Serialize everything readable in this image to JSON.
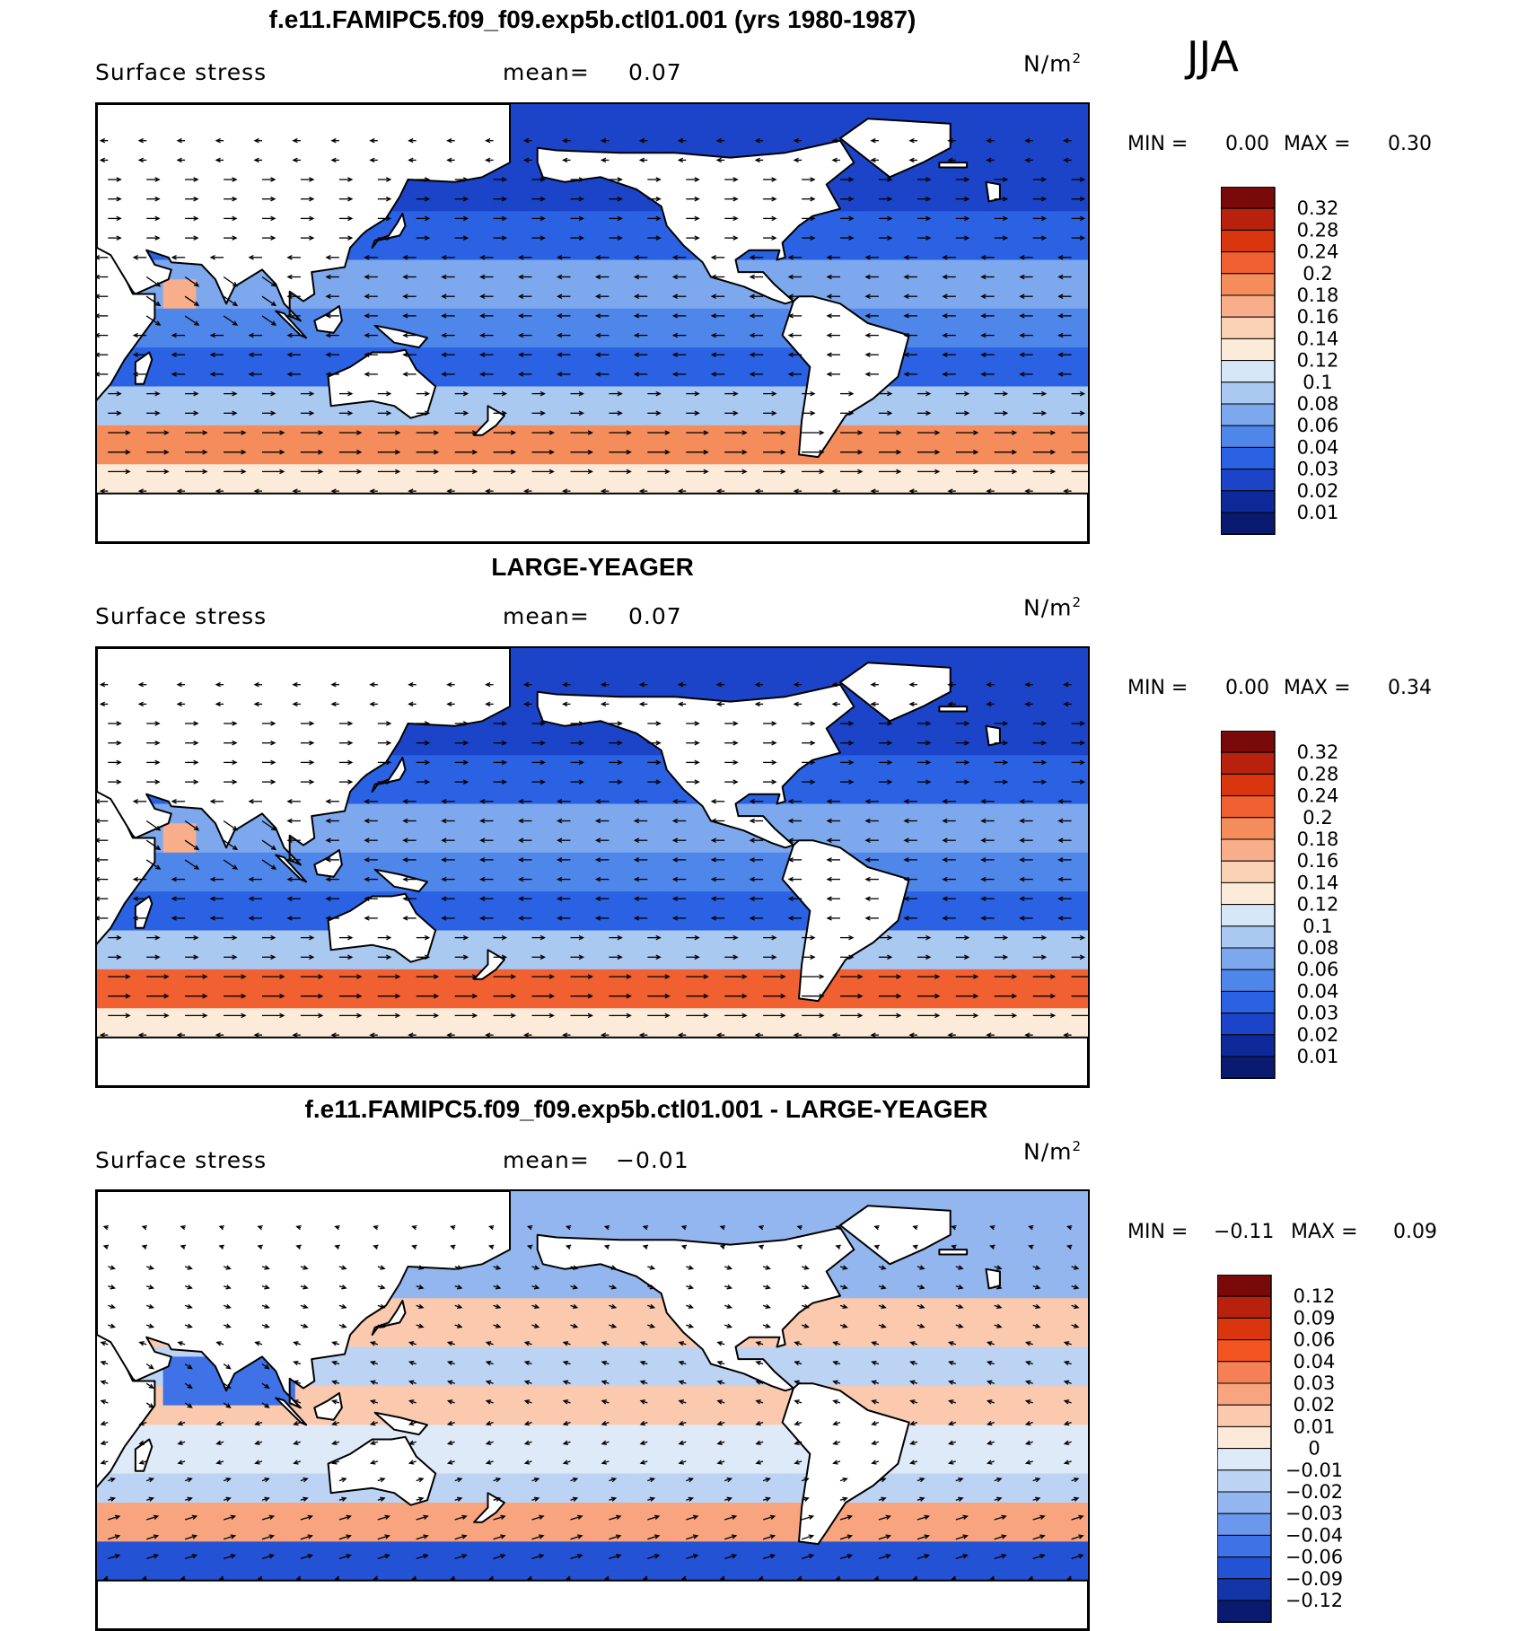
{
  "season": "JJA",
  "units_base": "N/m",
  "units_exp": "2",
  "panels": [
    {
      "title": "f.e11.FAMIPC5.f09_f09.exp5b.ctl01.001 (yrs 1980-1987)",
      "variable": "Surface stress",
      "mean_label": "mean=",
      "mean_value": "0.07",
      "min_label": "MIN =",
      "min_value": "0.00",
      "max_label": "MAX =",
      "max_value": "0.30",
      "colorbar": [
        "0.32",
        "0.28",
        "0.24",
        "0.2",
        "0.18",
        "0.16",
        "0.14",
        "0.12",
        "0.1",
        "0.08",
        "0.06",
        "0.04",
        "0.03",
        "0.02",
        "0.01"
      ]
    },
    {
      "title": "LARGE-YEAGER",
      "variable": "Surface stress",
      "mean_label": "mean=",
      "mean_value": "0.07",
      "min_label": "MIN =",
      "min_value": "0.00",
      "max_label": "MAX =",
      "max_value": "0.34",
      "colorbar": [
        "0.32",
        "0.28",
        "0.24",
        "0.2",
        "0.18",
        "0.16",
        "0.14",
        "0.12",
        "0.1",
        "0.08",
        "0.06",
        "0.04",
        "0.03",
        "0.02",
        "0.01"
      ]
    },
    {
      "title": "f.e11.FAMIPC5.f09_f09.exp5b.ctl01.001 - LARGE-YEAGER",
      "variable": "Surface stress",
      "mean_label": "mean=",
      "mean_value": "−0.01",
      "min_label": "MIN =",
      "min_value": "−0.11",
      "max_label": "MAX =",
      "max_value": "0.09",
      "colorbar": [
        "0.12",
        "0.09",
        "0.06",
        "0.04",
        "0.03",
        "0.02",
        "0.01",
        "0",
        "−0.01",
        "−0.02",
        "−0.03",
        "−0.04",
        "−0.06",
        "−0.09",
        "−0.12"
      ]
    }
  ],
  "colors": {
    "abs_scale": [
      "#7a0a0a",
      "#b8210d",
      "#d9360f",
      "#f06030",
      "#f58c5c",
      "#f8ae8a",
      "#fbd2b5",
      "#fcebd9",
      "#d6e8f8",
      "#a9c9f1",
      "#7da8ee",
      "#4f86ea",
      "#2a62e3",
      "#1b44c8",
      "#0e2a9a",
      "#0a1a6e"
    ],
    "diff_scale": [
      "#7a0a0a",
      "#b8210d",
      "#d9360f",
      "#f25520",
      "#f58055",
      "#f8a47f",
      "#fbc9ad",
      "#fde9da",
      "#dfeaf8",
      "#bcd3f3",
      "#93b6ef",
      "#6b97ec",
      "#3f72e6",
      "#2352d4",
      "#1235a8",
      "#0a1a6e"
    ],
    "land": "#ffffff",
    "coast": "#000000"
  }
}
